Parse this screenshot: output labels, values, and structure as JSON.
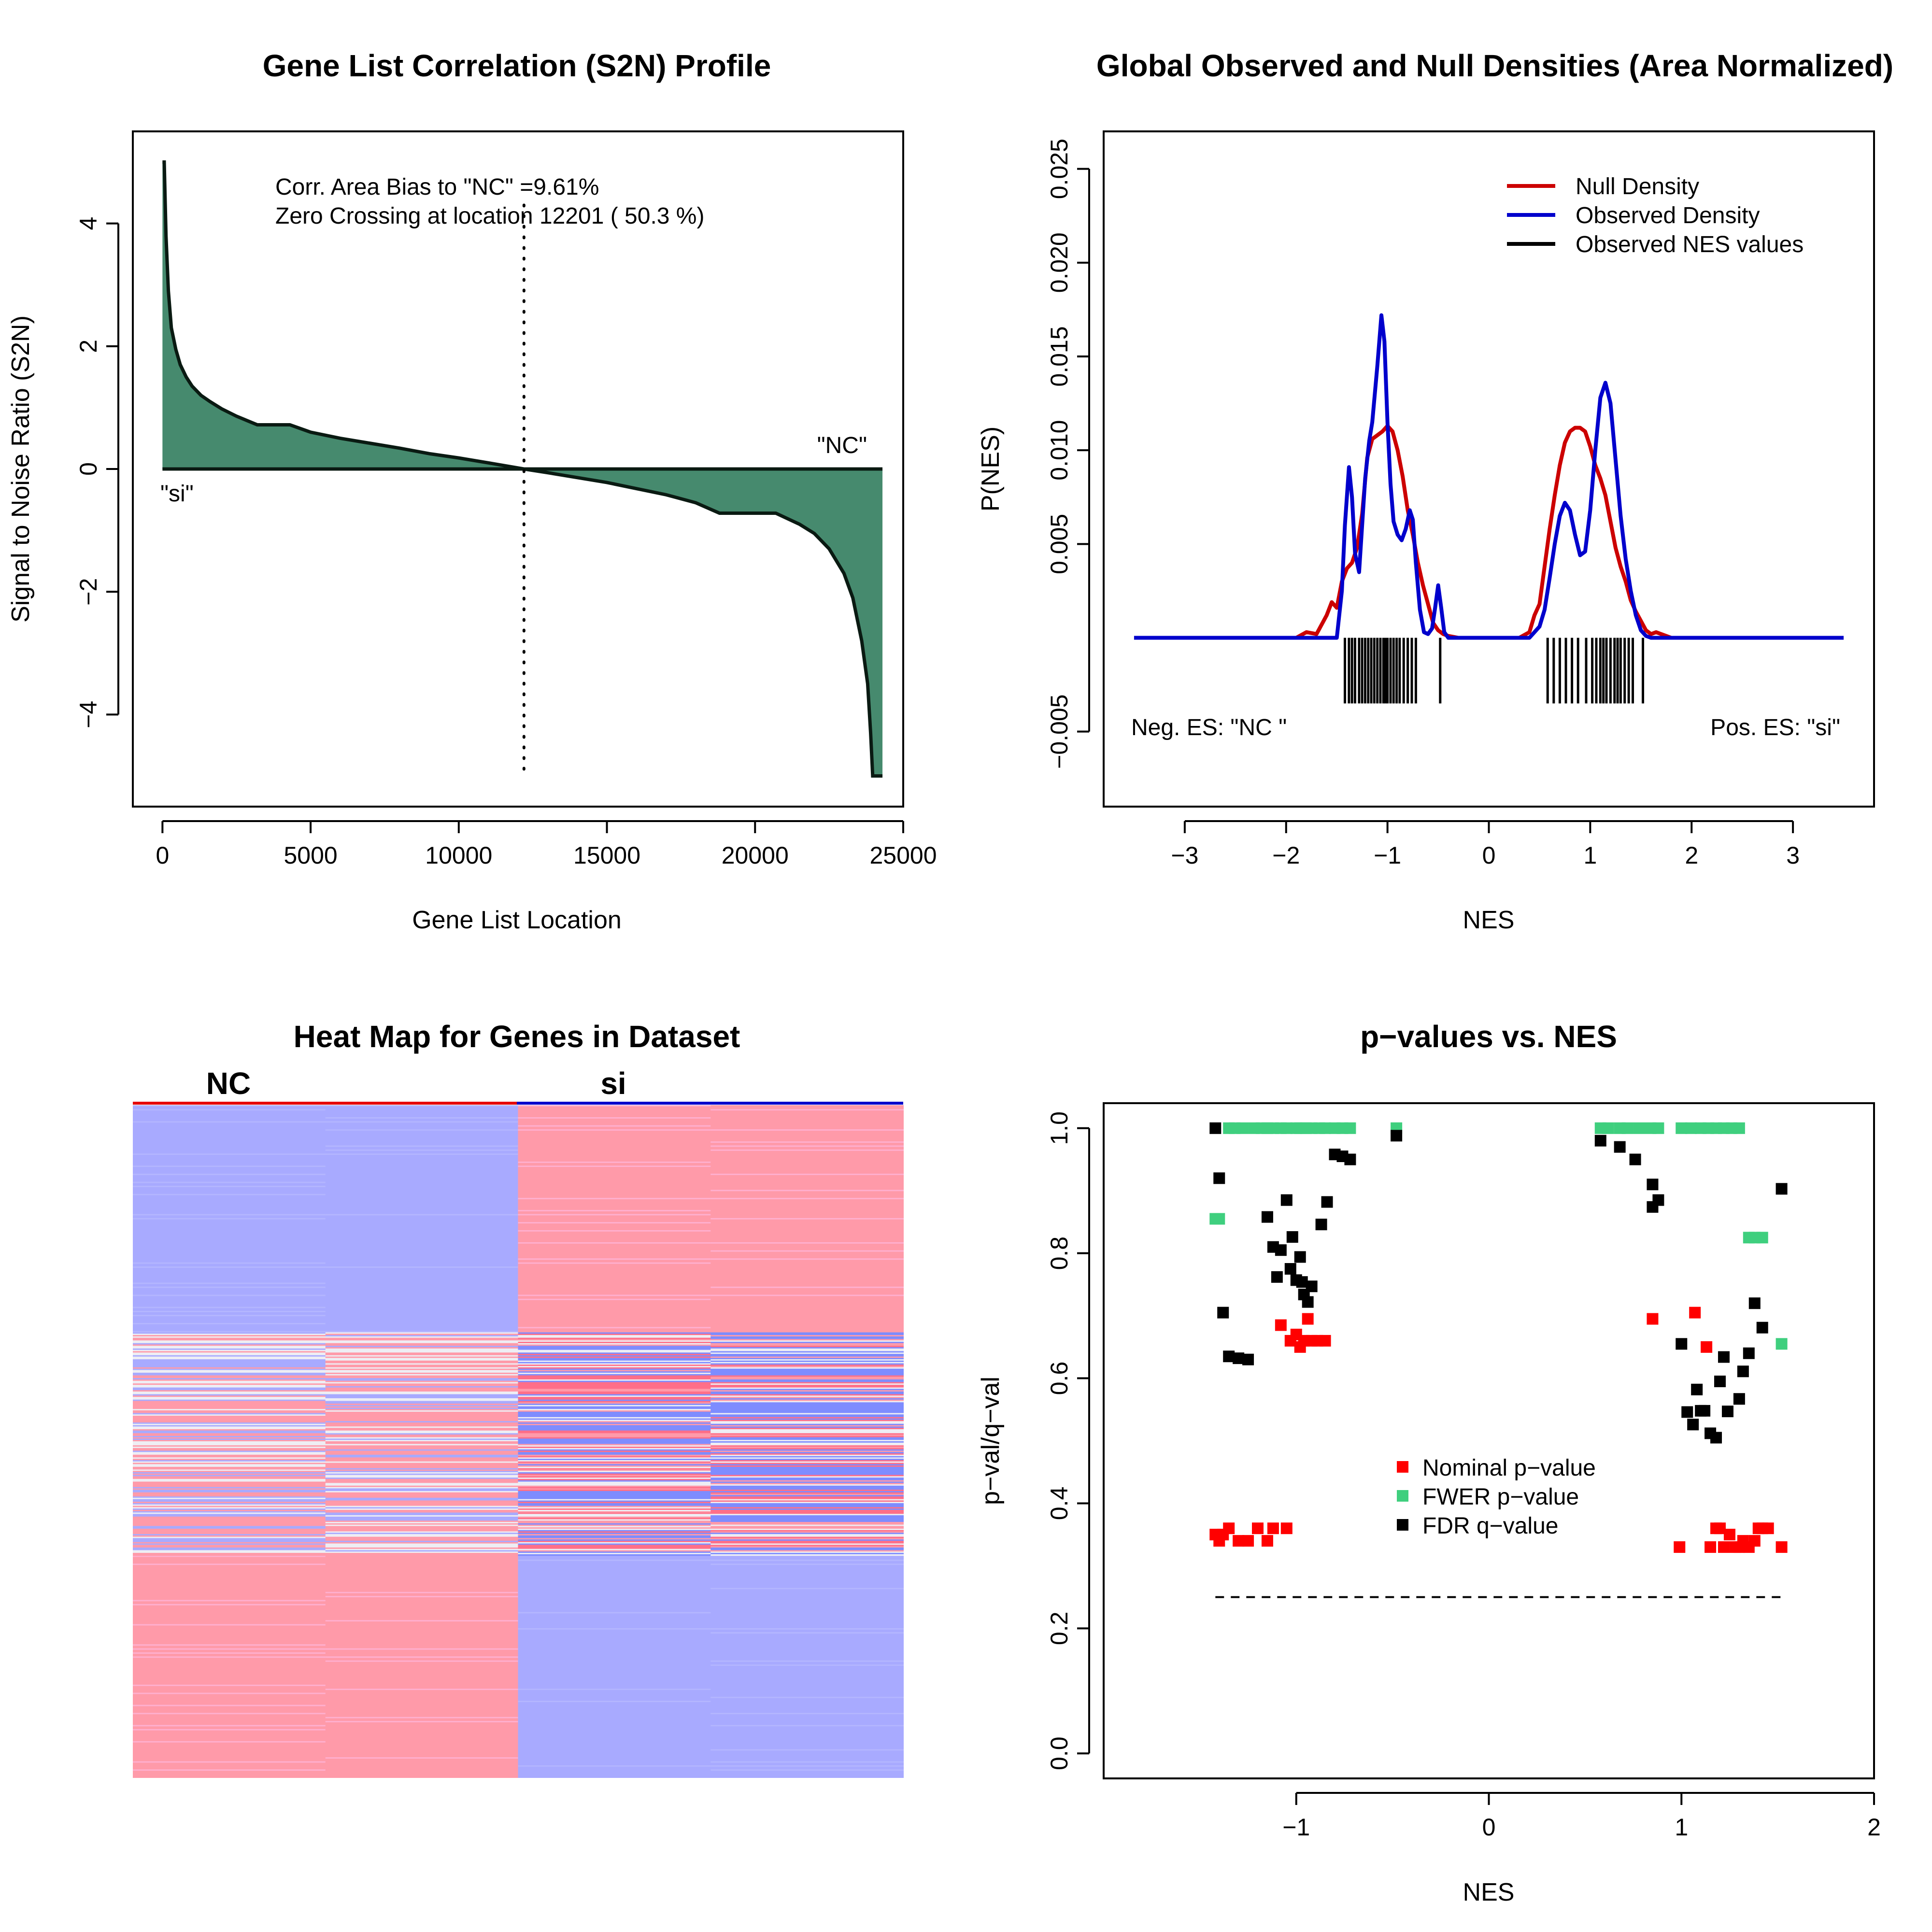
{
  "chart_data": [
    {
      "type": "area",
      "title": "Gene List Correlation (S2N) Profile",
      "xlabel": "Gene List Location",
      "ylabel": "Signal to Noise Ratio (S2N)",
      "xlim": [
        -1000,
        25000
      ],
      "ylim": [
        -5.5,
        5.5
      ],
      "x_ticks": [
        0,
        5000,
        10000,
        15000,
        20000,
        25000
      ],
      "y_ticks": [
        -4,
        -2,
        0,
        2,
        4
      ],
      "grid": false,
      "fill_color": "#468a6e",
      "x": [
        0,
        60,
        120,
        200,
        300,
        450,
        600,
        800,
        1000,
        1300,
        1600,
        2000,
        2500,
        3200,
        4300,
        5000,
        6000,
        7000,
        8000,
        9000,
        10000,
        11000,
        12201,
        13000,
        14000,
        15000,
        16000,
        17000,
        18000,
        18800,
        20000,
        20700,
        21500,
        22000,
        22500,
        23000,
        23300,
        23600,
        23800,
        23900,
        23970,
        24000,
        24300
      ],
      "y": [
        5.0,
        5.0,
        3.8,
        2.9,
        2.3,
        1.95,
        1.7,
        1.5,
        1.35,
        1.2,
        1.1,
        0.98,
        0.86,
        0.72,
        0.72,
        0.6,
        0.5,
        0.42,
        0.34,
        0.25,
        0.18,
        0.1,
        0.0,
        -0.06,
        -0.14,
        -0.22,
        -0.32,
        -0.42,
        -0.55,
        -0.72,
        -0.72,
        -0.72,
        -0.9,
        -1.05,
        -1.3,
        -1.7,
        -2.1,
        -2.8,
        -3.5,
        -4.3,
        -5.0,
        -5.0,
        -5.0
      ],
      "zero_crossing": 12201,
      "annotations": {
        "line1": "Corr. Area Bias to \"NC\" =9.61%",
        "line2": "Zero Crossing at location  12201  ( 50.3  %)",
        "pos_label": "\"NC\"",
        "neg_label": "\"si\""
      }
    },
    {
      "type": "line",
      "title": "Global Observed and Null Densities (Area Normalized)",
      "xlabel": "NES",
      "ylabel": "P(NES)",
      "xlim": [
        -3.8,
        3.8
      ],
      "ylim": [
        -0.009,
        0.027
      ],
      "x_ticks": [
        -3,
        -2,
        -1,
        0,
        1,
        2,
        3
      ],
      "y_ticks": [
        -0.005,
        0.005,
        0.01,
        0.015,
        0.02,
        0.025
      ],
      "y_tick_labels": [
        "−0.005",
        "0.005",
        "0.010",
        "0.015",
        "0.020",
        "0.025"
      ],
      "baseline": 0,
      "legend": {
        "placement": "top-right",
        "entries": [
          "Null Density",
          "Observed Density",
          "Observed NES values"
        ]
      },
      "series": [
        {
          "name": "Null Density",
          "color": "#cc0000",
          "x": [
            -3.5,
            -2.0,
            -1.9,
            -1.8,
            -1.7,
            -1.6,
            -1.55,
            -1.5,
            -1.45,
            -1.4,
            -1.35,
            -1.3,
            -1.25,
            -1.2,
            -1.15,
            -1.1,
            -1.05,
            -1.0,
            -0.95,
            -0.9,
            -0.85,
            -0.8,
            -0.75,
            -0.7,
            -0.65,
            -0.6,
            -0.55,
            -0.5,
            -0.45,
            -0.4,
            -0.3,
            0.3,
            0.4,
            0.45,
            0.5,
            0.55,
            0.6,
            0.65,
            0.7,
            0.75,
            0.8,
            0.85,
            0.9,
            0.95,
            1.0,
            1.05,
            1.1,
            1.15,
            1.2,
            1.25,
            1.3,
            1.35,
            1.4,
            1.45,
            1.5,
            1.55,
            1.6,
            1.65,
            1.7,
            1.75,
            1.8,
            1.9,
            3.5
          ],
          "y": [
            0,
            0,
            0,
            0.0003,
            0.0002,
            0.0012,
            0.0019,
            0.0016,
            0.003,
            0.0037,
            0.004,
            0.0048,
            0.0066,
            0.0096,
            0.0106,
            0.0108,
            0.011,
            0.0113,
            0.011,
            0.01,
            0.0086,
            0.0068,
            0.0055,
            0.004,
            0.0028,
            0.0018,
            0.0008,
            0.0004,
            0.0002,
            0.0001,
            0,
            0,
            0.0003,
            0.0012,
            0.0018,
            0.0038,
            0.0058,
            0.0076,
            0.0092,
            0.0104,
            0.011,
            0.0112,
            0.0112,
            0.011,
            0.0102,
            0.0092,
            0.0085,
            0.0076,
            0.0062,
            0.0048,
            0.0038,
            0.003,
            0.002,
            0.0014,
            0.0009,
            0.0004,
            0.0002,
            0.0003,
            0.0002,
            0.0001,
            0,
            0,
            0
          ]
        },
        {
          "name": "Observed Density",
          "color": "#0000cc",
          "x": [
            -3.5,
            -1.5,
            -1.45,
            -1.42,
            -1.38,
            -1.35,
            -1.32,
            -1.28,
            -1.25,
            -1.22,
            -1.18,
            -1.15,
            -1.1,
            -1.06,
            -1.03,
            -1.0,
            -0.97,
            -0.94,
            -0.9,
            -0.86,
            -0.82,
            -0.78,
            -0.75,
            -0.72,
            -0.68,
            -0.64,
            -0.6,
            -0.56,
            -0.53,
            -0.5,
            -0.47,
            -0.44,
            -0.4,
            0.4,
            0.5,
            0.55,
            0.6,
            0.65,
            0.7,
            0.75,
            0.8,
            0.85,
            0.9,
            0.95,
            1.0,
            1.05,
            1.1,
            1.15,
            1.2,
            1.25,
            1.3,
            1.35,
            1.4,
            1.45,
            1.5,
            1.55,
            1.6,
            1.65,
            1.7,
            3.5
          ],
          "y": [
            0,
            0,
            0.0025,
            0.006,
            0.0091,
            0.0075,
            0.0045,
            0.0035,
            0.006,
            0.0085,
            0.0105,
            0.0115,
            0.0145,
            0.0172,
            0.0158,
            0.0115,
            0.0082,
            0.0062,
            0.0055,
            0.0052,
            0.0058,
            0.0068,
            0.0063,
            0.004,
            0.0015,
            0.0003,
            0.0002,
            0.0005,
            0.0016,
            0.0028,
            0.0016,
            0.0003,
            0,
            0,
            0.0006,
            0.0015,
            0.0032,
            0.005,
            0.0065,
            0.0072,
            0.0068,
            0.0055,
            0.0044,
            0.0046,
            0.0068,
            0.01,
            0.0128,
            0.0136,
            0.0125,
            0.0095,
            0.0065,
            0.0042,
            0.0025,
            0.0012,
            0.0004,
            0.0001,
            0,
            0,
            0,
            0
          ]
        },
        {
          "name": "Observed NES values",
          "color": "#000000",
          "type": "rug",
          "values": [
            -1.42,
            -1.38,
            -1.35,
            -1.32,
            -1.28,
            -1.25,
            -1.22,
            -1.19,
            -1.16,
            -1.13,
            -1.1,
            -1.07,
            -1.04,
            -1.02,
            -1.0,
            -0.97,
            -0.94,
            -0.91,
            -0.88,
            -0.84,
            -0.8,
            -0.76,
            -0.72,
            -0.48,
            0.58,
            0.64,
            0.7,
            0.76,
            0.82,
            0.88,
            0.96,
            1.02,
            1.06,
            1.1,
            1.13,
            1.16,
            1.2,
            1.24,
            1.27,
            1.3,
            1.34,
            1.38,
            1.42,
            1.52
          ]
        }
      ],
      "annotations": {
        "neg": "Neg. ES: \"NC \"",
        "pos": "Pos. ES: \"si\""
      }
    },
    {
      "type": "heatmap",
      "title": "Heat Map for Genes in Dataset",
      "columns": [
        "NC",
        "si"
      ],
      "column_colors": [
        "#e60000",
        "#0000cc"
      ],
      "colors": {
        "red": "#ff9aa9",
        "blue": "#a8aaff",
        "light": "#eeeef4",
        "deep_red": "#ff6f88",
        "deep_blue": "#7e8cff",
        "pink": "#ffb0d0"
      }
    },
    {
      "type": "scatter",
      "title": "p−values vs. NES",
      "xlabel": "NES",
      "ylabel": "p−val/q−val",
      "xlim": [
        -2.0,
        2.0
      ],
      "ylim": [
        -0.04,
        1.04
      ],
      "x_ticks": [
        -1,
        0,
        1,
        2
      ],
      "x_tick_labels": [
        "−1",
        "0",
        "1",
        "2"
      ],
      "y_ticks": [
        0.0,
        0.2,
        0.4,
        0.6,
        0.8,
        1.0
      ],
      "y_tick_labels": [
        "0.0",
        "0.2",
        "0.4",
        "0.6",
        "0.8",
        "1.0"
      ],
      "threshold": {
        "y": 0.25,
        "x_from": -1.42,
        "x_to": 1.52,
        "style": "dashed"
      },
      "legend": {
        "placement": "center",
        "entries": [
          "Nominal p−value",
          "FWER p−value",
          "FDR q−value"
        ]
      },
      "series": [
        {
          "name": "Nominal p−value",
          "color": "#ff0000",
          "x": [
            -1.42,
            -1.4,
            -1.38,
            -1.35,
            -1.3,
            -1.25,
            -1.2,
            -1.15,
            -1.12,
            -1.08,
            -1.05,
            -1.03,
            -1.0,
            -0.98,
            -0.96,
            -0.94,
            -0.92,
            -0.89,
            -0.85,
            0.85,
            0.99,
            1.07,
            1.13,
            1.15,
            1.18,
            1.2,
            1.22,
            1.25,
            1.28,
            1.3,
            1.32,
            1.35,
            1.38,
            1.4,
            1.42,
            1.45,
            1.52
          ],
          "y": [
            0.35,
            0.34,
            0.35,
            0.36,
            0.34,
            0.34,
            0.36,
            0.34,
            0.36,
            0.685,
            0.36,
            0.66,
            0.67,
            0.65,
            0.66,
            0.695,
            0.66,
            0.66,
            0.66,
            0.695,
            0.33,
            0.705,
            0.65,
            0.33,
            0.36,
            0.36,
            0.33,
            0.35,
            0.33,
            0.33,
            0.34,
            0.33,
            0.34,
            0.36,
            0.36,
            0.36,
            0.33
          ]
        },
        {
          "name": "FWER p−value",
          "color": "#3fcf7e",
          "x": [
            -1.42,
            -1.4,
            -1.35,
            -1.32,
            -1.28,
            -1.22,
            -1.18,
            -1.15,
            -1.12,
            -1.08,
            -1.05,
            -1.0,
            -0.98,
            -0.95,
            -0.92,
            -0.88,
            -0.85,
            -0.8,
            -0.76,
            -0.72,
            -0.48,
            0.58,
            0.62,
            0.68,
            0.72,
            0.78,
            0.84,
            0.88,
            1.0,
            1.05,
            1.1,
            1.14,
            1.18,
            1.22,
            1.26,
            1.3,
            1.35,
            1.38,
            1.42,
            1.52
          ],
          "y": [
            0.855,
            0.855,
            1.0,
            1.0,
            1.0,
            1.0,
            1.0,
            1.0,
            1.0,
            1.0,
            1.0,
            1.0,
            1.0,
            1.0,
            1.0,
            1.0,
            1.0,
            1.0,
            1.0,
            1.0,
            1.0,
            1.0,
            1.0,
            1.0,
            1.0,
            1.0,
            1.0,
            1.0,
            1.0,
            1.0,
            1.0,
            1.0,
            1.0,
            1.0,
            1.0,
            1.0,
            0.825,
            0.825,
            0.825,
            0.655
          ]
        },
        {
          "name": "FDR q−value",
          "color": "#000000",
          "x": [
            -1.42,
            -1.4,
            -1.38,
            -1.35,
            -1.3,
            -1.25,
            -1.15,
            -1.12,
            -1.1,
            -1.08,
            -1.05,
            -1.03,
            -1.02,
            -1.0,
            -0.98,
            -0.97,
            -0.96,
            -0.94,
            -0.92,
            -0.87,
            -0.84,
            -0.8,
            -0.76,
            -0.72,
            -0.48,
            0.58,
            0.68,
            0.76,
            0.85,
            0.85,
            0.88,
            1.0,
            1.03,
            1.06,
            1.08,
            1.1,
            1.12,
            1.15,
            1.18,
            1.2,
            1.22,
            1.24,
            1.3,
            1.32,
            1.35,
            1.38,
            1.42,
            1.52
          ],
          "y": [
            1.0,
            0.92,
            0.705,
            0.635,
            0.632,
            0.63,
            0.858,
            0.81,
            0.762,
            0.805,
            0.885,
            0.775,
            0.826,
            0.757,
            0.794,
            0.754,
            0.734,
            0.722,
            0.747,
            0.846,
            0.882,
            0.958,
            0.955,
            0.95,
            0.988,
            0.98,
            0.97,
            0.95,
            0.91,
            0.874,
            0.885,
            0.655,
            0.546,
            0.526,
            0.582,
            0.548,
            0.548,
            0.512,
            0.505,
            0.595,
            0.634,
            0.547,
            0.567,
            0.611,
            0.64,
            0.72,
            0.681,
            0.903
          ]
        }
      ]
    }
  ]
}
